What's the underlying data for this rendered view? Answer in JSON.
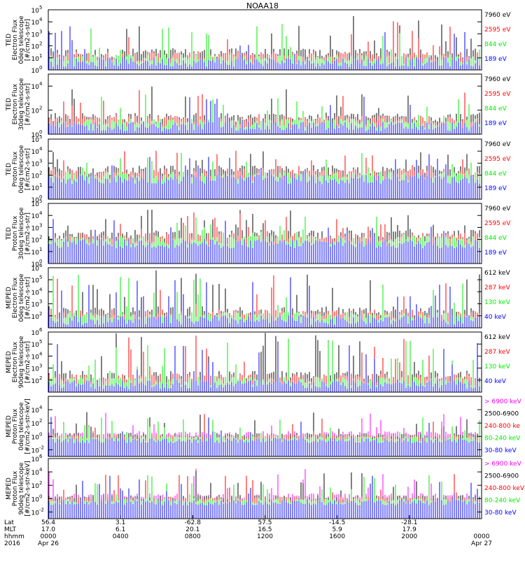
{
  "title": "NOAA18",
  "colors": {
    "black": "#000000",
    "red": "#ff0000",
    "green": "#00ee00",
    "blue": "#0000ff",
    "magenta": "#ff00ff",
    "axis": "#000000"
  },
  "panels": [
    {
      "ylabel": [
        "TED",
        "Electron Flux",
        "0deg telescope",
        "[#/cm2-s-str]"
      ],
      "ymin_exp": 0,
      "ymax_exp": 5,
      "ticks": [
        {
          "exp": "0",
          "label": "10"
        },
        {
          "exp": "1",
          "label": "10"
        },
        {
          "exp": "2",
          "label": "10"
        },
        {
          "exp": "3",
          "label": "10"
        },
        {
          "exp": "4",
          "label": "10"
        },
        {
          "exp": "5",
          "label": "10"
        }
      ],
      "legend": [
        {
          "text": "7960 eV",
          "color": "#000000"
        },
        {
          "text": "2595 eV",
          "color": "#ff0000"
        },
        {
          "text": "844 eV",
          "color": "#00ee00"
        },
        {
          "text": "189 eV",
          "color": "#0000ff"
        }
      ]
    },
    {
      "ylabel": [
        "TED",
        "Electron Flux",
        "30deg telescope",
        "[#/cm2-s-str]"
      ],
      "ymin_exp": 0,
      "ymax_exp": 5,
      "ticks": [
        {
          "exp": "0",
          "label": "10"
        },
        {
          "exp": "2",
          "label": "10"
        },
        {
          "exp": "4",
          "label": "10"
        }
      ],
      "legend": [
        {
          "text": "7960 eV",
          "color": "#000000"
        },
        {
          "text": "2595 eV",
          "color": "#ff0000"
        },
        {
          "text": "844 eV",
          "color": "#00ee00"
        },
        {
          "text": "189 eV",
          "color": "#0000ff"
        }
      ]
    },
    {
      "ylabel": [
        "TED",
        "Proton Flux",
        "0deg telescope",
        "[#/cm2-s-str]"
      ],
      "ymin_exp": 0,
      "ymax_exp": 5,
      "ticks": [
        {
          "exp": "0",
          "label": "10"
        },
        {
          "exp": "1",
          "label": "10"
        },
        {
          "exp": "2",
          "label": "10"
        },
        {
          "exp": "3",
          "label": "10"
        },
        {
          "exp": "4",
          "label": "10"
        },
        {
          "exp": "5",
          "label": "10"
        }
      ],
      "legend": [
        {
          "text": "7960 eV",
          "color": "#000000"
        },
        {
          "text": "2595 eV",
          "color": "#ff0000"
        },
        {
          "text": "844 eV",
          "color": "#00ee00"
        },
        {
          "text": "189 eV",
          "color": "#0000ff"
        }
      ]
    },
    {
      "ylabel": [
        "TED",
        "Proton Flux",
        "30deg telescope",
        "[#/cm2-s-str]"
      ],
      "ymin_exp": 0,
      "ymax_exp": 5,
      "ticks": [
        {
          "exp": "0",
          "label": "10"
        },
        {
          "exp": "1",
          "label": "10"
        },
        {
          "exp": "2",
          "label": "10"
        },
        {
          "exp": "3",
          "label": "10"
        },
        {
          "exp": "4",
          "label": "10"
        },
        {
          "exp": "5",
          "label": "10"
        }
      ],
      "legend": [
        {
          "text": "7960 eV",
          "color": "#000000"
        },
        {
          "text": "2595 eV",
          "color": "#ff0000"
        },
        {
          "text": "844 eV",
          "color": "#00ee00"
        },
        {
          "text": "189 eV",
          "color": "#0000ff"
        }
      ]
    },
    {
      "ylabel": [
        "MEPED",
        "Electron Flux",
        "0deg telescope",
        "[#/cm2-s-str]"
      ],
      "ymin_exp": 1,
      "ymax_exp": 6,
      "ticks": [
        {
          "exp": "2",
          "label": "10"
        },
        {
          "exp": "3",
          "label": "10"
        },
        {
          "exp": "4",
          "label": "10"
        },
        {
          "exp": "5",
          "label": "10"
        },
        {
          "exp": "6",
          "label": "10"
        }
      ],
      "legend": [
        {
          "text": "612 keV",
          "color": "#000000"
        },
        {
          "text": "287 keV",
          "color": "#ff0000"
        },
        {
          "text": "130 keV",
          "color": "#00ee00"
        },
        {
          "text": "40 keV",
          "color": "#0000ff"
        }
      ]
    },
    {
      "ylabel": [
        "MEPED",
        "Electron Flux",
        "90deg telescope",
        "[#/cm2-s-str]"
      ],
      "ymin_exp": 1,
      "ymax_exp": 6,
      "ticks": [
        {
          "exp": "2",
          "label": "10"
        },
        {
          "exp": "3",
          "label": "10"
        },
        {
          "exp": "4",
          "label": "10"
        },
        {
          "exp": "5",
          "label": "10"
        },
        {
          "exp": "6",
          "label": "10"
        }
      ],
      "legend": [
        {
          "text": "612 keV",
          "color": "#000000"
        },
        {
          "text": "287 keV",
          "color": "#ff0000"
        },
        {
          "text": "130 keV",
          "color": "#00ee00"
        },
        {
          "text": "40 keV",
          "color": "#0000ff"
        }
      ]
    },
    {
      "ylabel": [
        "MEPED",
        "Proton Flux",
        "0deg telescope",
        "[#/cm2-s-str-keV]"
      ],
      "ymin_exp": -3,
      "ymax_exp": 6,
      "ticks": [
        {
          "exp": "-2",
          "label": "10"
        },
        {
          "exp": "0",
          "label": "10"
        },
        {
          "exp": "2",
          "label": "10"
        },
        {
          "exp": "4",
          "label": "10"
        }
      ],
      "legend": [
        {
          "text": "> 6900 keV",
          "color": "#ff00ff"
        },
        {
          "text": "2500-6900",
          "color": "#000000"
        },
        {
          "text": "240-800 ke",
          "color": "#ff0000"
        },
        {
          "text": "80-240 keV",
          "color": "#00ee00"
        },
        {
          "text": "30-80 keV",
          "color": "#0000ff"
        }
      ]
    },
    {
      "ylabel": [
        "MEPED",
        "Proton Flux",
        "90deg telescope",
        "[#/cm2-s-str-keV]"
      ],
      "ymin_exp": -3,
      "ymax_exp": 6,
      "ticks": [
        {
          "exp": "-2",
          "label": "10"
        },
        {
          "exp": "0",
          "label": "10"
        },
        {
          "exp": "2",
          "label": "10"
        },
        {
          "exp": "4",
          "label": "10"
        },
        {
          "exp": "6",
          "label": "10"
        }
      ],
      "legend": [
        {
          "text": "> 6900 keV",
          "color": "#ff00ff"
        },
        {
          "text": "2500-6900",
          "color": "#000000"
        },
        {
          "text": "240-800 keV",
          "color": "#ff0000"
        },
        {
          "text": "80-240 keV",
          "color": "#00ee00"
        },
        {
          "text": "30-80 keV",
          "color": "#0000ff"
        }
      ]
    }
  ],
  "bottom_axis": {
    "row_labels": [
      "Lat",
      "MLT",
      "hhmm",
      "2016"
    ],
    "columns": [
      {
        "lat": "56.4",
        "mlt": "17.0",
        "hhmm": "0000",
        "date": "Apr 26"
      },
      {
        "lat": "3.1",
        "mlt": "6.1",
        "hhmm": "0400",
        "date": ""
      },
      {
        "lat": "-62.8",
        "mlt": "20.1",
        "hhmm": "0800",
        "date": ""
      },
      {
        "lat": "57.5",
        "mlt": "16.5",
        "hhmm": "1200",
        "date": ""
      },
      {
        "lat": "-14.5",
        "mlt": "5.9",
        "hhmm": "1600",
        "date": ""
      },
      {
        "lat": "-28.1",
        "mlt": "17.9",
        "hhmm": "2000",
        "date": ""
      },
      {
        "lat": "",
        "mlt": "",
        "hhmm": "0000",
        "date": "Apr 27"
      }
    ]
  },
  "chart_data": {
    "type": "line",
    "title": "NOAA18",
    "x_axis": "time 2016 Apr 26 0000 to Apr 27 0000 (hhmm)",
    "x_ticks": [
      "0000",
      "0400",
      "0800",
      "1200",
      "1600",
      "2000",
      "0000"
    ],
    "yscale": "log",
    "grid": false,
    "legend": "right side of each panel",
    "panels": [
      {
        "name": "TED Electron Flux 0deg telescope",
        "series": [
          {
            "name": "7960 eV",
            "color": "#000000"
          },
          {
            "name": "2595 eV",
            "color": "#ff0000"
          },
          {
            "name": "844 eV",
            "color": "#00ee00"
          },
          {
            "name": "189 eV",
            "color": "#0000ff"
          }
        ],
        "ylim_log10": [
          0,
          5
        ],
        "typical_background_log10": 1,
        "peak_log10": 4.5
      },
      {
        "name": "TED Electron Flux 30deg telescope",
        "series": [
          {
            "name": "7960 eV",
            "color": "#000000"
          },
          {
            "name": "2595 eV",
            "color": "#ff0000"
          },
          {
            "name": "844 eV",
            "color": "#00ee00"
          },
          {
            "name": "189 eV",
            "color": "#0000ff"
          }
        ],
        "ylim_log10": [
          0,
          5
        ],
        "typical_background_log10": 1,
        "peak_log10": 4
      },
      {
        "name": "TED Proton Flux 0deg telescope",
        "series": [
          {
            "name": "7960 eV",
            "color": "#000000"
          },
          {
            "name": "2595 eV",
            "color": "#ff0000"
          },
          {
            "name": "844 eV",
            "color": "#00ee00"
          },
          {
            "name": "189 eV",
            "color": "#0000ff"
          }
        ],
        "ylim_log10": [
          0,
          5
        ],
        "typical_background_log10": 2,
        "peak_log10": 4.5
      },
      {
        "name": "TED Proton Flux 30deg telescope",
        "series": [
          {
            "name": "7960 eV",
            "color": "#000000"
          },
          {
            "name": "2595 eV",
            "color": "#ff0000"
          },
          {
            "name": "844 eV",
            "color": "#00ee00"
          },
          {
            "name": "189 eV",
            "color": "#0000ff"
          }
        ],
        "ylim_log10": [
          0,
          5
        ],
        "typical_background_log10": 2,
        "peak_log10": 4.5
      },
      {
        "name": "MEPED Electron Flux 0deg telescope",
        "series": [
          {
            "name": "612 keV",
            "color": "#000000"
          },
          {
            "name": "287 keV",
            "color": "#ff0000"
          },
          {
            "name": "130 keV",
            "color": "#00ee00"
          },
          {
            "name": "40 keV",
            "color": "#0000ff"
          }
        ],
        "ylim_log10": [
          1,
          6
        ],
        "typical_background_log10": 2,
        "peak_log10": 6
      },
      {
        "name": "MEPED Electron Flux 90deg telescope",
        "series": [
          {
            "name": "612 keV",
            "color": "#000000"
          },
          {
            "name": "287 keV",
            "color": "#ff0000"
          },
          {
            "name": "130 keV",
            "color": "#00ee00"
          },
          {
            "name": "40 keV",
            "color": "#0000ff"
          }
        ],
        "ylim_log10": [
          1,
          6
        ],
        "typical_background_log10": 2,
        "peak_log10": 6
      },
      {
        "name": "MEPED Proton Flux 0deg telescope",
        "series": [
          {
            "name": "> 6900 keV",
            "color": "#ff00ff"
          },
          {
            "name": "2500-6900",
            "color": "#000000"
          },
          {
            "name": "240-800 keV",
            "color": "#ff0000"
          },
          {
            "name": "80-240 keV",
            "color": "#00ee00"
          },
          {
            "name": "30-80 keV",
            "color": "#0000ff"
          }
        ],
        "ylim_log10": [
          -3,
          6
        ],
        "typical_background_log10": 0,
        "peak_log10": 4
      },
      {
        "name": "MEPED Proton Flux 90deg telescope",
        "series": [
          {
            "name": "> 6900 keV",
            "color": "#ff00ff"
          },
          {
            "name": "2500-6900",
            "color": "#000000"
          },
          {
            "name": "240-800 keV",
            "color": "#ff0000"
          },
          {
            "name": "80-240 keV",
            "color": "#00ee00"
          },
          {
            "name": "30-80 keV",
            "color": "#0000ff"
          }
        ],
        "ylim_log10": [
          -3,
          6
        ],
        "typical_background_log10": 0,
        "peak_log10": 4.5
      }
    ]
  }
}
